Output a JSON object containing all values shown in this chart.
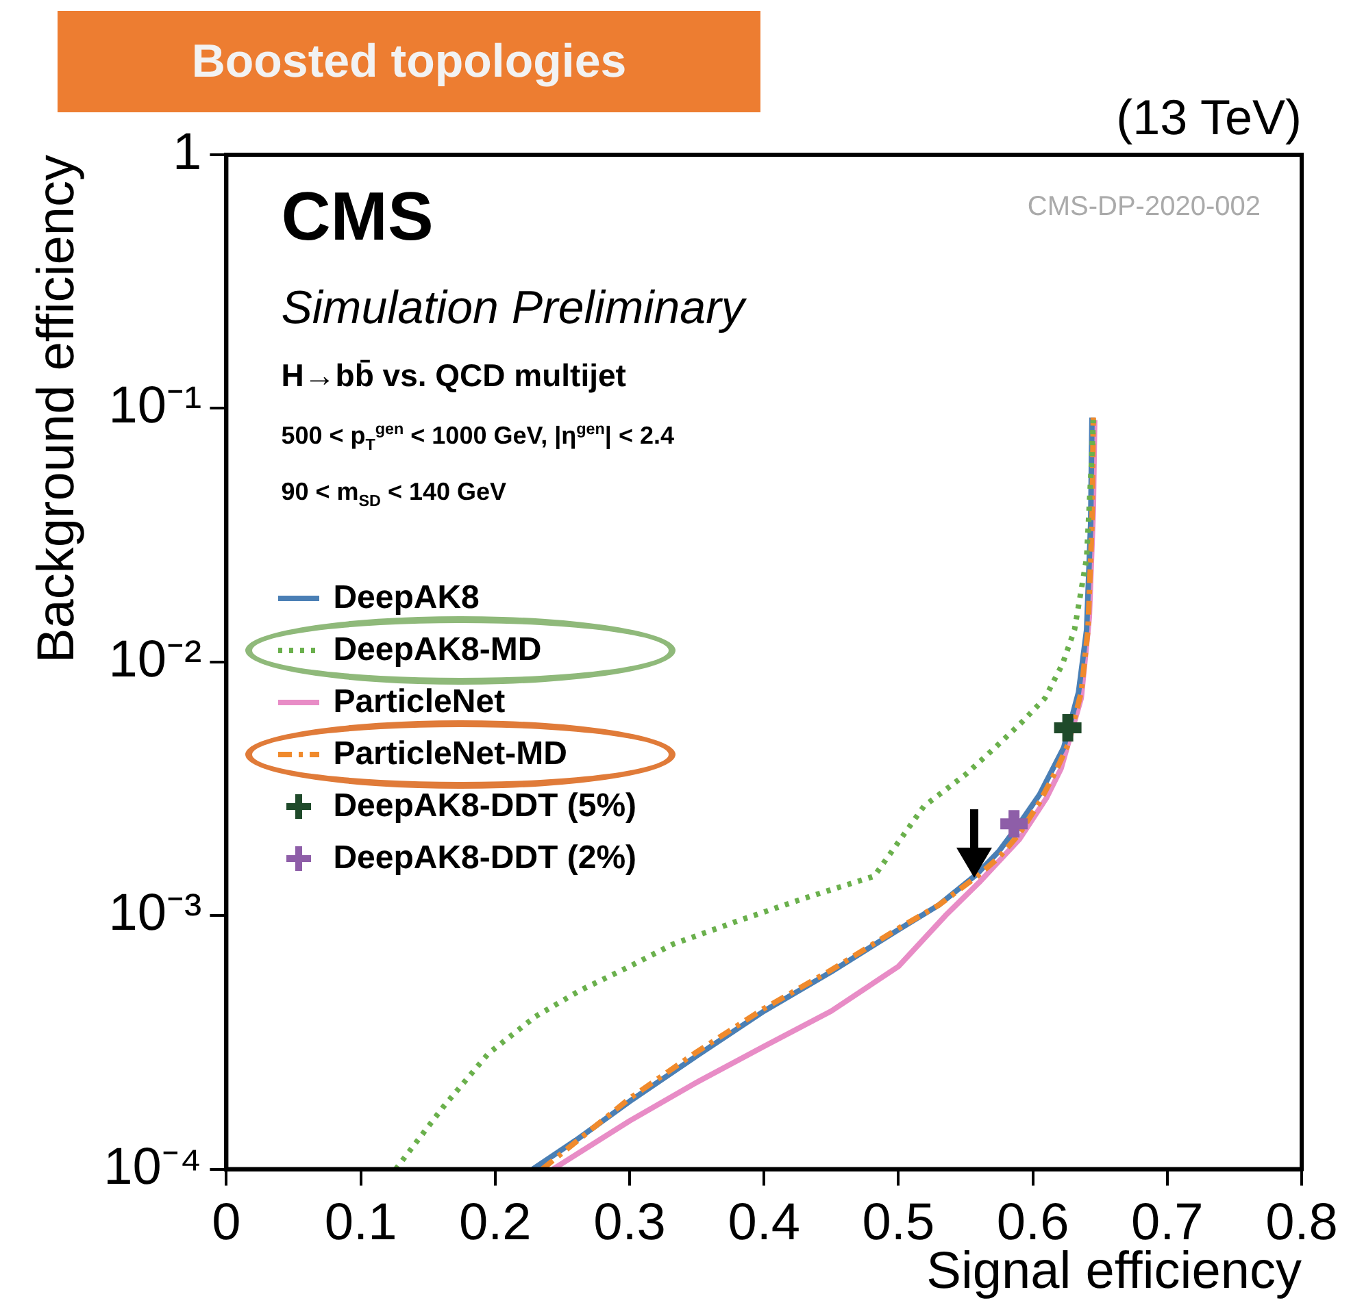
{
  "chart_data": {
    "type": "line",
    "title": "Boosted topologies",
    "xlabel": "Signal efficiency",
    "ylabel": "Background efficiency",
    "annotations": [
      "(13 TeV)",
      "CMS",
      "Simulation Preliminary",
      "CMS-DP-2020-002",
      "H→bb̄ vs. QCD multijet",
      "500 < p$_{T}$$^{gen}$ < 1000 GeV, |η$^{gen}$| < 2.4",
      "90 < m$_{SD}$ < 140 GeV"
    ],
    "xlim": [
      0,
      0.8
    ],
    "xticks": [
      0,
      0.1,
      0.2,
      0.3,
      0.4,
      0.5,
      0.6,
      0.7,
      0.8
    ],
    "ylim": [
      0.0001,
      1
    ],
    "yticks": [
      {
        "value": 0.0001,
        "label": "10⁻⁴"
      },
      {
        "value": 0.001,
        "label": "10⁻³"
      },
      {
        "value": 0.01,
        "label": "10⁻²"
      },
      {
        "value": 0.1,
        "label": "10⁻¹"
      },
      1
    ],
    "log": true,
    "grid": false,
    "legend": "left",
    "series": [
      {
        "name": "DeepAK8",
        "color": "#4a7fb5",
        "line_style": "solid",
        "marker": "none",
        "x": [
          0.228,
          0.26,
          0.3,
          0.35,
          0.4,
          0.45,
          0.5,
          0.53,
          0.558,
          0.575,
          0.59,
          0.605,
          0.615,
          0.623,
          0.634,
          0.64,
          0.643,
          0.644
        ],
        "values": [
          0.0001,
          0.00013,
          0.000185,
          0.00028,
          0.00042,
          0.0006,
          0.00088,
          0.0011,
          0.00145,
          0.0018,
          0.0023,
          0.003,
          0.0038,
          0.0046,
          0.0076,
          0.0134,
          0.035,
          0.092
        ]
      },
      {
        "name": "DeepAK8-MD",
        "color": "#6ab04c",
        "line_style": "dotted",
        "marker": "none",
        "x": [
          0.126,
          0.161,
          0.195,
          0.23,
          0.263,
          0.3,
          0.332,
          0.38,
          0.43,
          0.482,
          0.519,
          0.55,
          0.572,
          0.592,
          0.609,
          0.622,
          0.631,
          0.64,
          0.644,
          0.645
        ],
        "values": [
          0.0001,
          0.000175,
          0.000286,
          0.0004,
          0.000506,
          0.00063,
          0.00077,
          0.00095,
          0.00117,
          0.00143,
          0.0027,
          0.0036,
          0.0046,
          0.0058,
          0.0072,
          0.0098,
          0.0134,
          0.0257,
          0.067,
          0.09
        ]
      },
      {
        "name": "ParticleNet",
        "color": "#e88cc6",
        "line_style": "solid",
        "marker": "none",
        "x": [
          0.243,
          0.3,
          0.35,
          0.4,
          0.45,
          0.5,
          0.535,
          0.56,
          0.59,
          0.61,
          0.621,
          0.636,
          0.642,
          0.645,
          0.646
        ],
        "values": [
          0.0001,
          0.000155,
          0.00022,
          0.000305,
          0.00042,
          0.00063,
          0.001,
          0.00135,
          0.002,
          0.0029,
          0.0038,
          0.0072,
          0.015,
          0.04,
          0.09
        ]
      },
      {
        "name": "ParticleNet-MD",
        "color": "#f08a2c",
        "line_style": "dashed",
        "marker": "none",
        "x": [
          0.235,
          0.26,
          0.3,
          0.35,
          0.4,
          0.45,
          0.5,
          0.53,
          0.558,
          0.575,
          0.59,
          0.605,
          0.617,
          0.626,
          0.636,
          0.641,
          0.644,
          0.645
        ],
        "values": [
          0.0001,
          0.000128,
          0.00019,
          0.00029,
          0.00043,
          0.00061,
          0.00089,
          0.0011,
          0.00142,
          0.0017,
          0.0021,
          0.0028,
          0.0037,
          0.0047,
          0.0076,
          0.0134,
          0.035,
          0.092
        ]
      },
      {
        "name": "DeepAK8-DDT (5%)",
        "type": "scatter",
        "color": "#1f4a2a",
        "marker": "cross",
        "x": [
          0.626
        ],
        "values": [
          0.0055
        ]
      },
      {
        "name": "DeepAK8-DDT (2%)",
        "type": "scatter",
        "color": "#8e5ea8",
        "marker": "cross",
        "x": [
          0.586
        ],
        "values": [
          0.0023
        ]
      }
    ]
  }
}
